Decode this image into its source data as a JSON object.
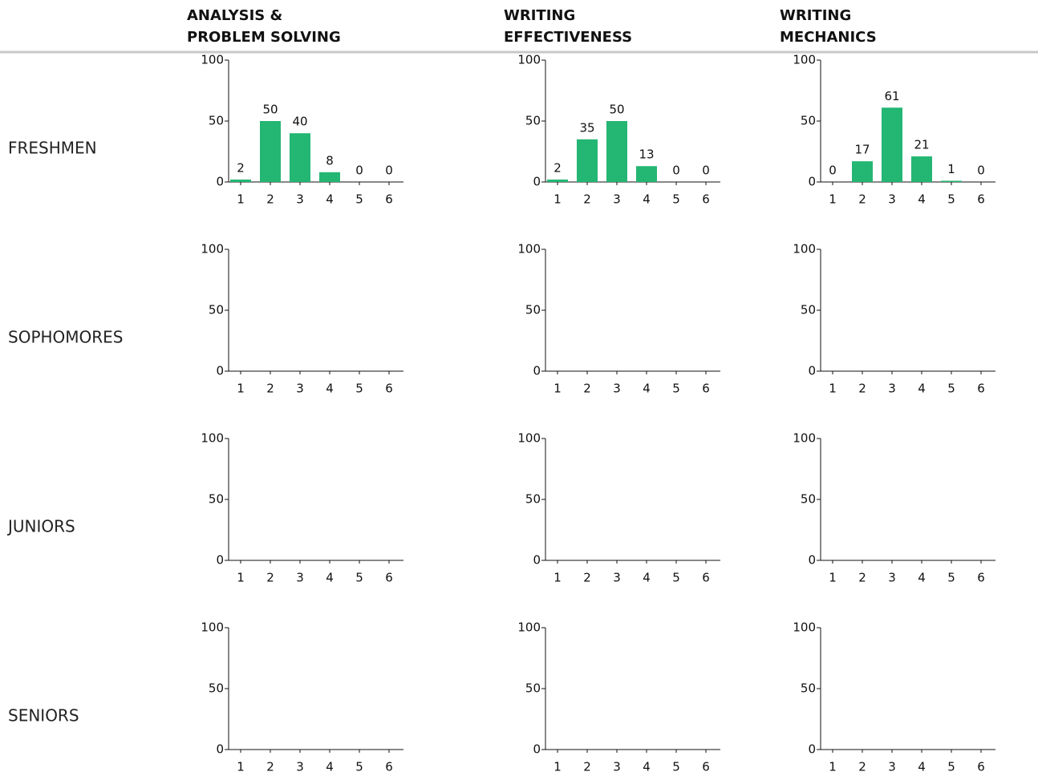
{
  "columns": [
    [
      "ANALYSIS &",
      "PROBLEM SOLVING"
    ],
    [
      "WRITING",
      "EFFECTIVENESS"
    ],
    [
      "WRITING",
      "MECHANICS"
    ]
  ],
  "rows": [
    "FRESHMEN",
    "SOPHOMORES",
    "JUNIORS",
    "SENIORS"
  ],
  "chart_data": [
    {
      "type": "bar",
      "categories": [
        "1",
        "2",
        "3",
        "4",
        "5",
        "6"
      ],
      "values": [
        2,
        50,
        40,
        8,
        0,
        0
      ],
      "ylim": [
        0,
        100
      ],
      "yticks": [
        0,
        50,
        100
      ],
      "color": "#24b673"
    },
    {
      "type": "bar",
      "categories": [
        "1",
        "2",
        "3",
        "4",
        "5",
        "6"
      ],
      "values": [
        2,
        35,
        50,
        13,
        0,
        0
      ],
      "ylim": [
        0,
        100
      ],
      "yticks": [
        0,
        50,
        100
      ],
      "color": "#24b673"
    },
    {
      "type": "bar",
      "categories": [
        "1",
        "2",
        "3",
        "4",
        "5",
        "6"
      ],
      "values": [
        0,
        17,
        61,
        21,
        1,
        0
      ],
      "ylim": [
        0,
        100
      ],
      "yticks": [
        0,
        50,
        100
      ],
      "color": "#24b673"
    },
    {
      "type": "bar",
      "categories": [
        "1",
        "2",
        "3",
        "4",
        "5",
        "6"
      ],
      "values": [
        null,
        null,
        null,
        null,
        null,
        null
      ],
      "ylim": [
        0,
        100
      ],
      "yticks": [
        0,
        50,
        100
      ],
      "color": "#24b673"
    },
    {
      "type": "bar",
      "categories": [
        "1",
        "2",
        "3",
        "4",
        "5",
        "6"
      ],
      "values": [
        null,
        null,
        null,
        null,
        null,
        null
      ],
      "ylim": [
        0,
        100
      ],
      "yticks": [
        0,
        50,
        100
      ],
      "color": "#24b673"
    },
    {
      "type": "bar",
      "categories": [
        "1",
        "2",
        "3",
        "4",
        "5",
        "6"
      ],
      "values": [
        null,
        null,
        null,
        null,
        null,
        null
      ],
      "ylim": [
        0,
        100
      ],
      "yticks": [
        0,
        50,
        100
      ],
      "color": "#24b673"
    },
    {
      "type": "bar",
      "categories": [
        "1",
        "2",
        "3",
        "4",
        "5",
        "6"
      ],
      "values": [
        null,
        null,
        null,
        null,
        null,
        null
      ],
      "ylim": [
        0,
        100
      ],
      "yticks": [
        0,
        50,
        100
      ],
      "color": "#24b673"
    },
    {
      "type": "bar",
      "categories": [
        "1",
        "2",
        "3",
        "4",
        "5",
        "6"
      ],
      "values": [
        null,
        null,
        null,
        null,
        null,
        null
      ],
      "ylim": [
        0,
        100
      ],
      "yticks": [
        0,
        50,
        100
      ],
      "color": "#24b673"
    },
    {
      "type": "bar",
      "categories": [
        "1",
        "2",
        "3",
        "4",
        "5",
        "6"
      ],
      "values": [
        null,
        null,
        null,
        null,
        null,
        null
      ],
      "ylim": [
        0,
        100
      ],
      "yticks": [
        0,
        50,
        100
      ],
      "color": "#24b673"
    },
    {
      "type": "bar",
      "categories": [
        "1",
        "2",
        "3",
        "4",
        "5",
        "6"
      ],
      "values": [
        null,
        null,
        null,
        null,
        null,
        null
      ],
      "ylim": [
        0,
        100
      ],
      "yticks": [
        0,
        50,
        100
      ],
      "color": "#24b673"
    },
    {
      "type": "bar",
      "categories": [
        "1",
        "2",
        "3",
        "4",
        "5",
        "6"
      ],
      "values": [
        null,
        null,
        null,
        null,
        null,
        null
      ],
      "ylim": [
        0,
        100
      ],
      "yticks": [
        0,
        50,
        100
      ],
      "color": "#24b673"
    },
    {
      "type": "bar",
      "categories": [
        "1",
        "2",
        "3",
        "4",
        "5",
        "6"
      ],
      "values": [
        null,
        null,
        null,
        null,
        null,
        null
      ],
      "ylim": [
        0,
        100
      ],
      "yticks": [
        0,
        50,
        100
      ],
      "color": "#24b673"
    }
  ]
}
